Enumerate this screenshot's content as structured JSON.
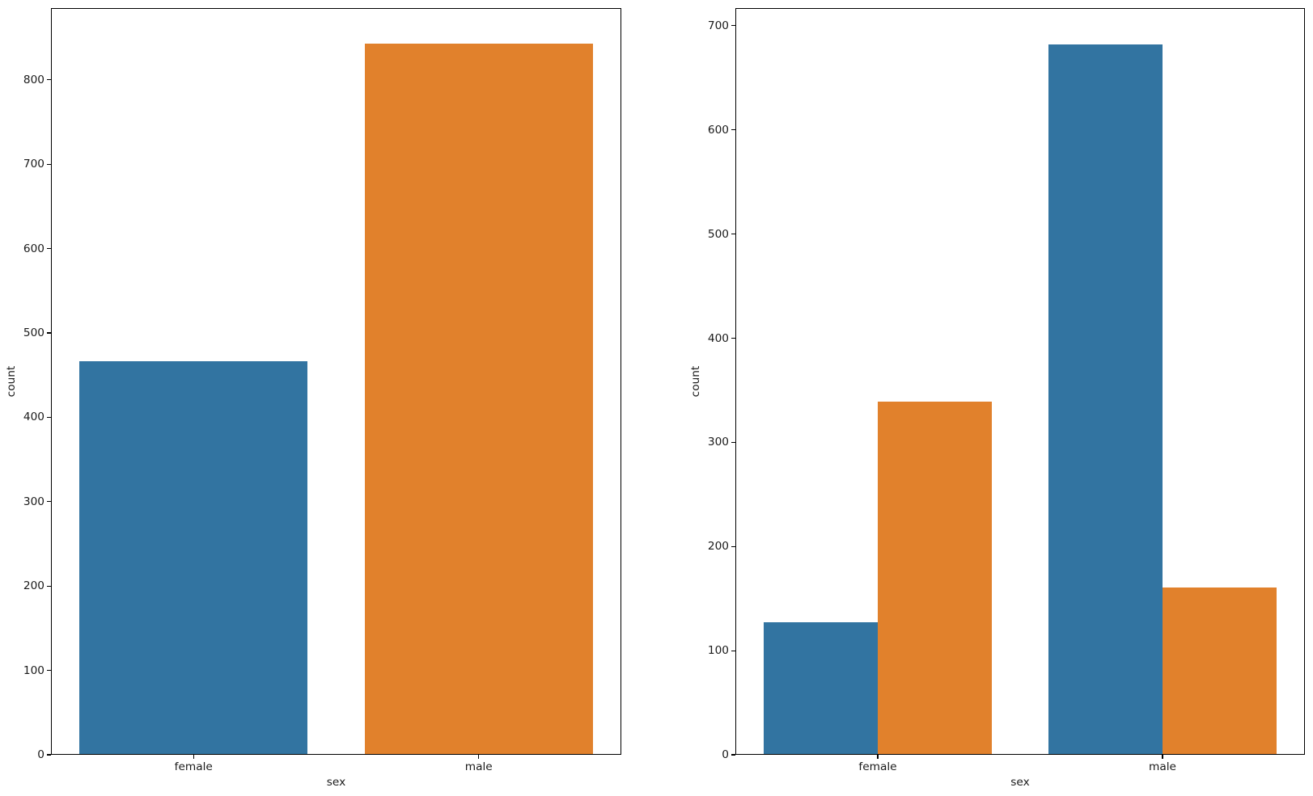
{
  "chart_data": [
    {
      "type": "bar",
      "title": "",
      "xlabel": "sex",
      "ylabel": "count",
      "categories": [
        "female",
        "male"
      ],
      "series": [
        {
          "values": [
            466,
            843
          ],
          "colors": [
            "#3274a1",
            "#e1812c"
          ]
        }
      ],
      "yticks": [
        0,
        100,
        200,
        300,
        400,
        500,
        600,
        700,
        800
      ],
      "ylim": [
        0,
        885
      ],
      "grid": false,
      "legend": "none"
    },
    {
      "type": "bar",
      "title": "",
      "xlabel": "sex",
      "ylabel": "count",
      "categories": [
        "female",
        "male"
      ],
      "series": [
        {
          "color": "#3274a1",
          "values": [
            127,
            682
          ]
        },
        {
          "color": "#e1812c",
          "values": [
            339,
            161
          ]
        }
      ],
      "yticks": [
        0,
        100,
        200,
        300,
        400,
        500,
        600,
        700
      ],
      "ylim": [
        0,
        717
      ],
      "grid": false,
      "legend": "none"
    }
  ],
  "colors": {
    "bar_blue": "#3274a1",
    "bar_orange": "#e1812c",
    "background": "#ffffff",
    "spine": "#000000",
    "text": "#1a1a1a"
  }
}
